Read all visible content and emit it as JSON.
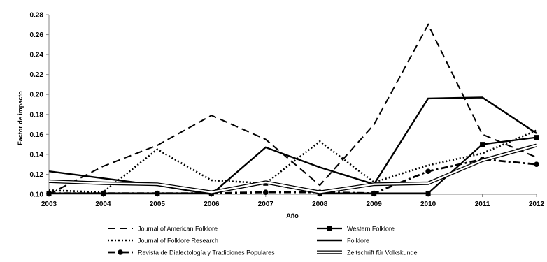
{
  "chart_data": {
    "type": "line",
    "title": "",
    "xlabel": "Año",
    "ylabel": "Factor de impacto",
    "x": [
      "2003",
      "2004",
      "2005",
      "2006",
      "2007",
      "2008",
      "2009",
      "2010",
      "2011",
      "2012"
    ],
    "ylim": [
      0.1,
      0.28
    ],
    "yticks": [
      "0.10",
      "0.12",
      "0.14",
      "0.16",
      "0.18",
      "0.20",
      "0.22",
      "0.24",
      "0.26",
      "0.28"
    ],
    "grid": false,
    "legend_position": "bottom",
    "series": [
      {
        "name": "Journal of American Folklore",
        "style": "dashed",
        "values": [
          0.1,
          0.128,
          0.149,
          0.179,
          0.155,
          0.109,
          0.17,
          0.27,
          0.16,
          0.137
        ]
      },
      {
        "name": "Western Folklore",
        "style": "solid-square",
        "values": [
          0.101,
          0.101,
          0.101,
          0.101,
          0.111,
          0.101,
          0.101,
          0.101,
          0.15,
          0.157
        ]
      },
      {
        "name": "Journal of Folklore Research",
        "style": "dotted",
        "values": [
          0.104,
          0.102,
          0.145,
          0.114,
          0.111,
          0.153,
          0.112,
          0.129,
          0.141,
          0.164
        ]
      },
      {
        "name": "Folklore",
        "style": "solid",
        "values": [
          0.123,
          0.116,
          0.109,
          0.1,
          0.147,
          0.127,
          0.11,
          0.196,
          0.197,
          0.161
        ]
      },
      {
        "name": "Revista de Dialectología y Tradiciones Populares",
        "style": "dashdot-circle",
        "values": [
          0.101,
          0.101,
          0.101,
          0.101,
          0.102,
          0.102,
          0.101,
          0.123,
          0.135,
          0.13
        ]
      },
      {
        "name": "Zeitschrift für Volkskunde",
        "style": "double",
        "values": [
          0.113,
          0.111,
          0.11,
          0.102,
          0.112,
          0.102,
          0.11,
          0.111,
          0.134,
          0.149
        ]
      }
    ]
  }
}
